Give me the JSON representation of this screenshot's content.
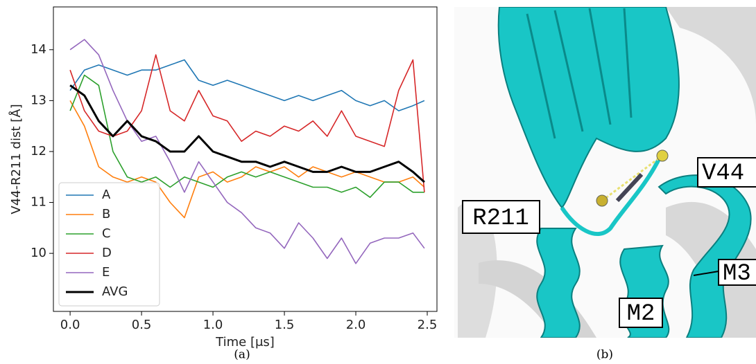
{
  "chart_data": {
    "type": "line",
    "x_label": "Time [μs]",
    "y_label": "V44-R211 dist [Å]",
    "x": [
      0,
      0.1,
      0.2,
      0.3,
      0.4,
      0.5,
      0.6,
      0.7,
      0.8,
      0.9,
      1.0,
      1.1,
      1.2,
      1.3,
      1.4,
      1.5,
      1.6,
      1.7,
      1.8,
      1.9,
      2.0,
      2.1,
      2.2,
      2.3,
      2.4,
      2.48
    ],
    "series": [
      {
        "name": "A",
        "color": "#1f77b4",
        "values": [
          13.2,
          13.6,
          13.7,
          13.6,
          13.5,
          13.6,
          13.6,
          13.7,
          13.8,
          13.4,
          13.3,
          13.4,
          13.3,
          13.2,
          13.1,
          13.0,
          13.1,
          13.0,
          13.1,
          13.2,
          13.0,
          12.9,
          13.0,
          12.8,
          12.9,
          13.0
        ]
      },
      {
        "name": "B",
        "color": "#ff7f0e",
        "values": [
          13.0,
          12.5,
          11.7,
          11.5,
          11.4,
          11.5,
          11.4,
          11.0,
          10.7,
          11.5,
          11.6,
          11.4,
          11.5,
          11.7,
          11.6,
          11.7,
          11.5,
          11.7,
          11.6,
          11.5,
          11.6,
          11.5,
          11.4,
          11.4,
          11.5,
          11.3
        ]
      },
      {
        "name": "C",
        "color": "#2ca02c",
        "values": [
          12.8,
          13.5,
          13.3,
          12.0,
          11.5,
          11.4,
          11.5,
          11.3,
          11.5,
          11.4,
          11.3,
          11.5,
          11.6,
          11.5,
          11.6,
          11.5,
          11.4,
          11.3,
          11.3,
          11.2,
          11.3,
          11.1,
          11.4,
          11.4,
          11.2,
          11.2
        ]
      },
      {
        "name": "D",
        "color": "#d62728",
        "values": [
          13.6,
          12.8,
          12.4,
          12.3,
          12.4,
          12.8,
          13.9,
          12.8,
          12.6,
          13.2,
          12.7,
          12.6,
          12.2,
          12.4,
          12.3,
          12.5,
          12.4,
          12.6,
          12.3,
          12.8,
          12.3,
          12.2,
          12.1,
          13.2,
          13.8,
          11.2
        ]
      },
      {
        "name": "E",
        "color": "#9467bd",
        "values": [
          14.0,
          14.2,
          13.9,
          13.2,
          12.6,
          12.2,
          12.3,
          11.8,
          11.2,
          11.8,
          11.4,
          11.0,
          10.8,
          10.5,
          10.4,
          10.1,
          10.6,
          10.3,
          9.9,
          10.3,
          9.8,
          10.2,
          10.3,
          10.3,
          10.4,
          10.1
        ]
      },
      {
        "name": "AVG",
        "color": "#000000",
        "values": [
          13.3,
          13.1,
          12.6,
          12.3,
          12.6,
          12.3,
          12.2,
          12.0,
          12.0,
          12.3,
          12.0,
          11.9,
          11.8,
          11.8,
          11.7,
          11.8,
          11.7,
          11.6,
          11.6,
          11.7,
          11.6,
          11.6,
          11.7,
          11.8,
          11.6,
          11.4
        ]
      }
    ],
    "xlim": [
      -0.117,
      2.568
    ],
    "ylim": [
      8.86,
      14.84
    ],
    "xticks": [
      {
        "value": 0,
        "label": "0.0"
      },
      0.5,
      {
        "value": 1,
        "label": "1.0"
      },
      1.5,
      {
        "value": 2,
        "label": "2.0"
      },
      2.5
    ],
    "yticks": [
      10,
      11,
      12,
      13,
      14
    ],
    "legend": "lower left"
  },
  "structure": {
    "labels": [
      "R211",
      "V44",
      "M3",
      "M2"
    ]
  },
  "captions": [
    "(a)",
    "(b)"
  ]
}
